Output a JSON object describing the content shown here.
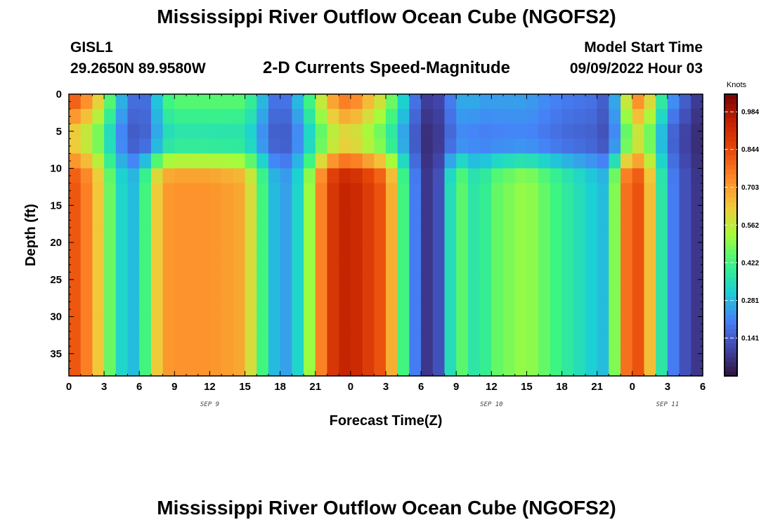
{
  "page": {
    "title_top": "Mississippi River Outflow Ocean Cube (NGOFS2)",
    "title_bottom": "Mississippi River Outflow Ocean Cube (NGOFS2)",
    "station_name": "GISL1",
    "station_coords": "29.2650N  89.9580W",
    "product_title": "2-D Currents Speed-Magnitude",
    "model_start_label": "Model Start Time",
    "model_start_value": "09/09/2022 Hour 03"
  },
  "chart_data": {
    "type": "heatmap",
    "title": "2-D Currents Speed-Magnitude",
    "xlabel": "Forecast Time(Z)",
    "ylabel": "Depth (ft)",
    "x_unit": "hours since 2022-09-09 00Z",
    "xlim": [
      0,
      54
    ],
    "ylim": [
      0,
      38
    ],
    "y_inverted": true,
    "x_ticks": [
      0,
      3,
      6,
      9,
      12,
      15,
      18,
      21,
      24,
      27,
      30,
      33,
      36,
      39,
      42,
      45,
      48,
      51,
      54
    ],
    "x_tick_labels": [
      "0",
      "3",
      "6",
      "9",
      "12",
      "15",
      "18",
      "21",
      "0",
      "3",
      "6",
      "9",
      "12",
      "15",
      "18",
      "21",
      "0",
      "3",
      "6"
    ],
    "y_ticks": [
      0,
      5,
      10,
      15,
      20,
      25,
      30,
      35
    ],
    "y_tick_labels": [
      "0",
      "5",
      "10",
      "15",
      "20",
      "25",
      "30",
      "35"
    ],
    "date_labels": [
      {
        "x": 12,
        "label": "SEP 9"
      },
      {
        "x": 36,
        "label": "SEP 10"
      },
      {
        "x": 51,
        "label": "SEP 11"
      }
    ],
    "colorbar": {
      "units": "Knots",
      "min": 0,
      "max": 1.05,
      "ticks": [
        0.984,
        0.844,
        0.703,
        0.562,
        0.422,
        0.281,
        0.141
      ],
      "tick_labels": [
        "0.984",
        "0.844",
        "0.703",
        "0.562",
        "0.422",
        "0.281",
        "0.141"
      ],
      "colormap": "turbo"
    },
    "grid": {
      "x_step_hours": 1,
      "depth_levels_ft": [
        0,
        2,
        4,
        6,
        8,
        10,
        12,
        14,
        16,
        18,
        20,
        22,
        24,
        26,
        28,
        30,
        32,
        34,
        36,
        38
      ],
      "profile_hours": [
        0,
        2,
        3,
        4,
        5,
        6,
        7,
        8,
        9,
        12,
        15,
        16,
        17,
        18,
        19,
        20,
        21,
        22,
        23,
        24,
        27,
        29,
        30,
        31,
        32,
        33,
        34,
        35,
        36,
        39,
        42,
        45,
        46,
        47,
        48,
        49,
        50,
        51,
        52,
        53,
        54
      ],
      "surface_speed_knots": [
        0.85,
        0.7,
        0.55,
        0.35,
        0.2,
        0.15,
        0.2,
        0.4,
        0.45,
        0.45,
        0.45,
        0.35,
        0.22,
        0.15,
        0.22,
        0.35,
        0.5,
        0.65,
        0.75,
        0.78,
        0.55,
        0.25,
        0.12,
        0.06,
        0.15,
        0.25,
        0.28,
        0.25,
        0.25,
        0.25,
        0.2,
        0.18,
        0.12,
        0.4,
        0.75,
        0.72,
        0.5,
        0.28,
        0.18,
        0.12,
        0.05
      ],
      "deep_speed_knots": [
        0.85,
        0.72,
        0.55,
        0.38,
        0.28,
        0.3,
        0.55,
        0.7,
        0.72,
        0.72,
        0.68,
        0.5,
        0.35,
        0.22,
        0.28,
        0.38,
        0.65,
        0.85,
        0.93,
        0.95,
        0.8,
        0.3,
        0.1,
        0.05,
        0.2,
        0.5,
        0.4,
        0.35,
        0.45,
        0.52,
        0.4,
        0.3,
        0.28,
        0.7,
        0.85,
        0.8,
        0.5,
        0.25,
        0.15,
        0.1,
        0.05
      ],
      "mid_min_depth_ft": 6,
      "transition_depth_ft": [
        8,
        12
      ]
    }
  }
}
